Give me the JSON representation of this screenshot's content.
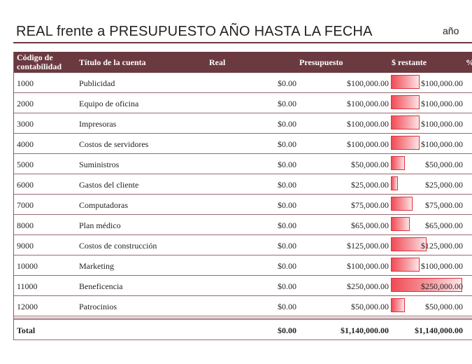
{
  "header": {
    "title": "REAL frente a PRESUPUESTO AÑO HASTA LA FECHA",
    "period": "año"
  },
  "columns": {
    "code": "Código de contabilidad",
    "account": "Título de la cuenta",
    "real": "Real",
    "budget": "Presupuesto",
    "remaining": "$ restante",
    "percent": "%"
  },
  "rows": [
    {
      "code": "1000",
      "account": "Publicidad",
      "real": "$0.00",
      "budget": "$100,000.00",
      "remaining": "$100,000.00",
      "budget_value": 100000
    },
    {
      "code": "2000",
      "account": "Equipo de oficina",
      "real": "$0.00",
      "budget": "$100,000.00",
      "remaining": "$100,000.00",
      "budget_value": 100000
    },
    {
      "code": "3000",
      "account": "Impresoras",
      "real": "$0.00",
      "budget": "$100,000.00",
      "remaining": "$100,000.00",
      "budget_value": 100000
    },
    {
      "code": "4000",
      "account": "Costos de servidores",
      "real": "$0.00",
      "budget": "$100,000.00",
      "remaining": "$100,000.00",
      "budget_value": 100000
    },
    {
      "code": "5000",
      "account": "Suministros",
      "real": "$0.00",
      "budget": "$50,000.00",
      "remaining": "$50,000.00",
      "budget_value": 50000
    },
    {
      "code": "6000",
      "account": "Gastos del cliente",
      "real": "$0.00",
      "budget": "$25,000.00",
      "remaining": "$25,000.00",
      "budget_value": 25000
    },
    {
      "code": "7000",
      "account": "Computadoras",
      "real": "$0.00",
      "budget": "$75,000.00",
      "remaining": "$75,000.00",
      "budget_value": 75000
    },
    {
      "code": "8000",
      "account": "Plan médico",
      "real": "$0.00",
      "budget": "$65,000.00",
      "remaining": "$65,000.00",
      "budget_value": 65000
    },
    {
      "code": "9000",
      "account": "Costos de construcción",
      "real": "$0.00",
      "budget": "$125,000.00",
      "remaining": "$125,000.00",
      "budget_value": 125000
    },
    {
      "code": "10000",
      "account": "Marketing",
      "real": "$0.00",
      "budget": "$100,000.00",
      "remaining": "$100,000.00",
      "budget_value": 100000
    },
    {
      "code": "11000",
      "account": "Beneficencia",
      "real": "$0.00",
      "budget": "$250,000.00",
      "remaining": "$250,000.00",
      "budget_value": 250000
    },
    {
      "code": "12000",
      "account": "Patrocinios",
      "real": "$0.00",
      "budget": "$50,000.00",
      "remaining": "$50,000.00",
      "budget_value": 50000
    }
  ],
  "total": {
    "label": "Total",
    "real": "$0.00",
    "budget": "$1,140,000.00",
    "remaining": "$1,140,000.00"
  },
  "colors": {
    "header_bg": "#6b3a40",
    "bar_start": "#f04a55",
    "bar_border": "#e0303c"
  }
}
